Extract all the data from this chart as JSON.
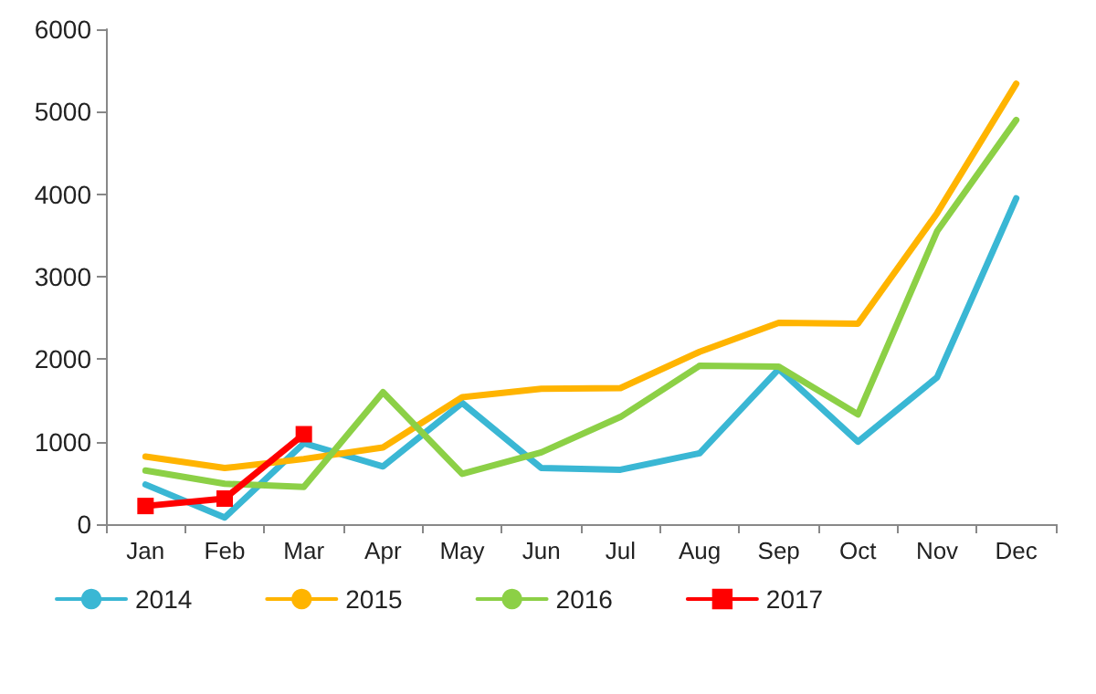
{
  "chart_data": {
    "type": "line",
    "categories": [
      "Jan",
      "Feb",
      "Mar",
      "Apr",
      "May",
      "Jun",
      "Jul",
      "Aug",
      "Sep",
      "Oct",
      "Nov",
      "Dec"
    ],
    "series": [
      {
        "name": "2014",
        "color": "#3ab7d4",
        "values": [
          480,
          80,
          980,
          700,
          1470,
          680,
          660,
          860,
          1880,
          1000,
          1780,
          3950
        ]
      },
      {
        "name": "2015",
        "color": "#ffb400",
        "values": [
          820,
          680,
          790,
          930,
          1540,
          1640,
          1650,
          2090,
          2440,
          2430,
          3770,
          5340
        ]
      },
      {
        "name": "2016",
        "color": "#8cd046",
        "values": [
          650,
          490,
          450,
          1600,
          610,
          870,
          1300,
          1920,
          1910,
          1330,
          3550,
          4900
        ]
      },
      {
        "name": "2017",
        "color": "#ff0000",
        "marker": "square",
        "values": [
          220,
          310,
          1090,
          null,
          null,
          null,
          null,
          null,
          null,
          null,
          null,
          null
        ]
      }
    ],
    "ylim": [
      0,
      6000
    ],
    "yticks": [
      0,
      1000,
      2000,
      3000,
      4000,
      5000,
      6000
    ],
    "grid": false,
    "legend": "bottom",
    "line_style": "solid"
  }
}
